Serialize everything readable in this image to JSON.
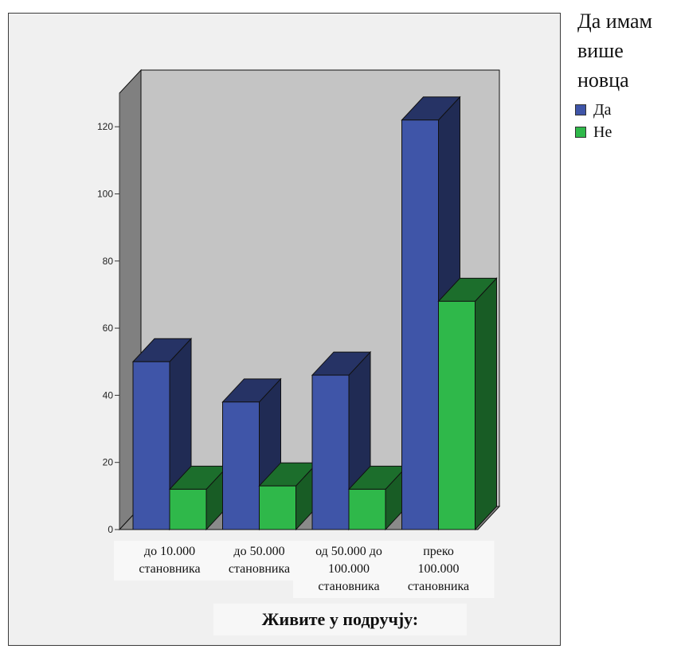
{
  "legend": {
    "title_lines": [
      "Да имам",
      "више",
      "новца"
    ],
    "items": [
      {
        "label": "Да",
        "color": "#3f55a8"
      },
      {
        "label": "Не",
        "color": "#2fb84a"
      }
    ]
  },
  "chart_data": {
    "type": "bar",
    "style": "3d-clustered",
    "categories": [
      [
        "до 10.000",
        "становника"
      ],
      [
        "до 50.000",
        "становника"
      ],
      [
        "од 50.000 до",
        "100.000",
        "становника"
      ],
      [
        "преко",
        "100.000",
        "становника"
      ]
    ],
    "series": [
      {
        "name": "Да",
        "values": [
          50,
          38,
          46,
          122
        ],
        "color": "#3f55a8"
      },
      {
        "name": "Не",
        "values": [
          12,
          13,
          12,
          68
        ],
        "color": "#2fb84a"
      }
    ],
    "xlabel": "Живите у подручју:",
    "ylabel": "",
    "ylim": [
      0,
      130
    ],
    "yticks": [
      0,
      20,
      40,
      60,
      80,
      100,
      120
    ],
    "grid": false,
    "legend_position": "right"
  }
}
